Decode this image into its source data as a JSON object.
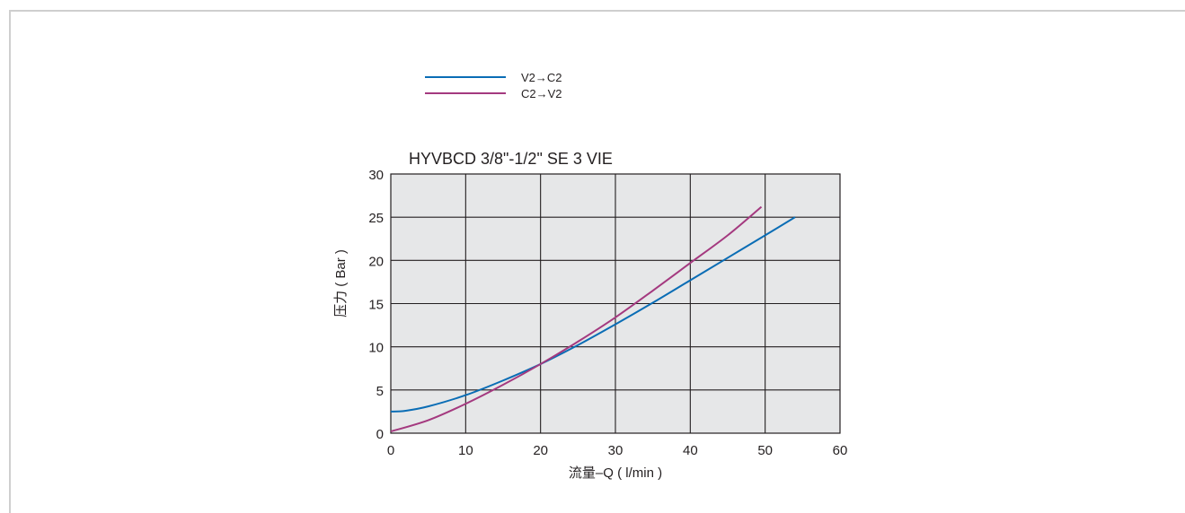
{
  "chart_data": {
    "type": "line",
    "title": "HYVBCD 3/8\"-1/2\" SE 3 VIE",
    "xlabel": "流量–Q ( l/min )",
    "ylabel": "压力 ( Bar )",
    "xlim": [
      0,
      60
    ],
    "ylim": [
      0,
      30
    ],
    "xticks": [
      "0",
      "10",
      "20",
      "30",
      "40",
      "50",
      "60"
    ],
    "yticks": [
      "0",
      "5",
      "10",
      "15",
      "20",
      "25",
      "30"
    ],
    "grid": true,
    "legend_position": "top-left",
    "plot_background": "#e6e7e8",
    "series": [
      {
        "name": "V2→C2",
        "color": "#0a6db5",
        "x": [
          0,
          2,
          5,
          10,
          15,
          20,
          25,
          30,
          35,
          40,
          45,
          50,
          54
        ],
        "y": [
          2.5,
          2.6,
          3.1,
          4.4,
          6.1,
          8.0,
          10.2,
          12.6,
          15.1,
          17.7,
          20.3,
          22.9,
          25.0
        ]
      },
      {
        "name": "C2→V2",
        "color": "#a4397f",
        "x": [
          0,
          5,
          10,
          15,
          20,
          25,
          30,
          35,
          40,
          45,
          49.5
        ],
        "y": [
          0.2,
          1.5,
          3.4,
          5.6,
          8.0,
          10.6,
          13.4,
          16.5,
          19.7,
          22.9,
          26.2
        ]
      }
    ]
  }
}
